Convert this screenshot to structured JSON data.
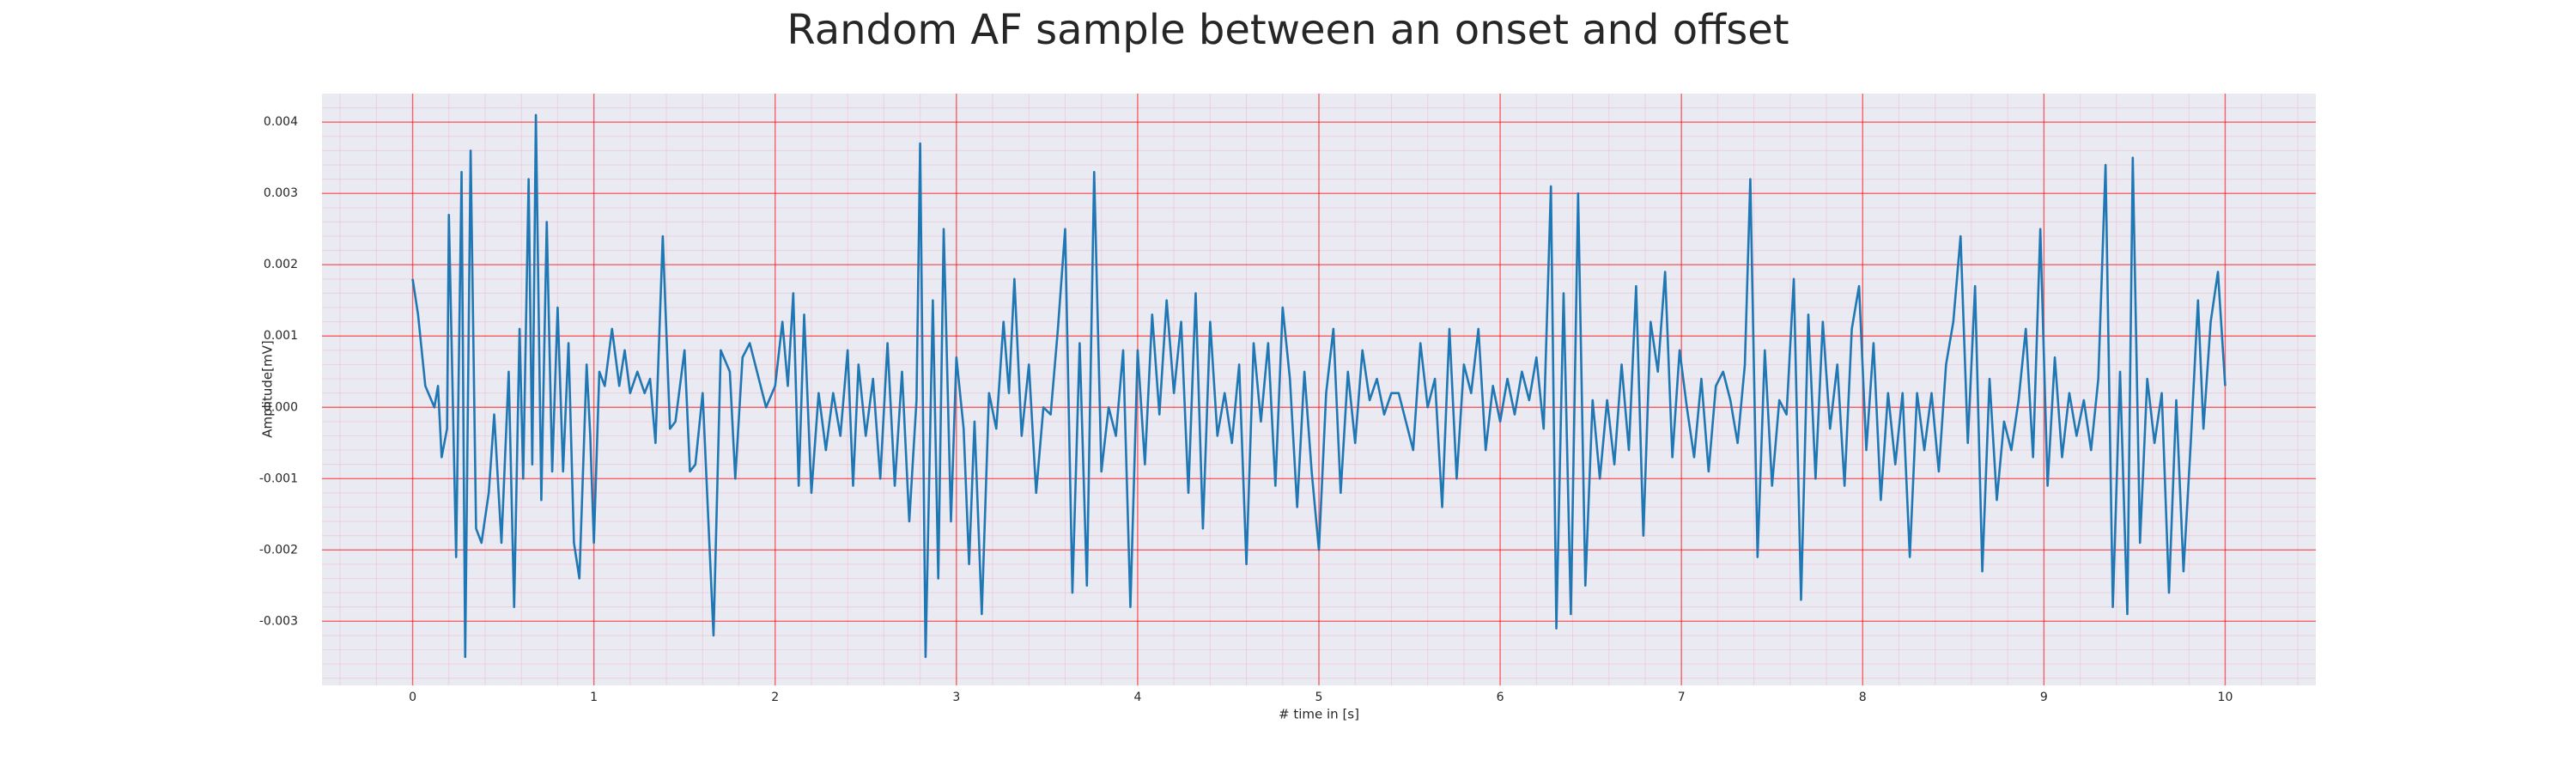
{
  "chart_data": {
    "type": "line",
    "title": "Random AF sample between an onset and offset",
    "xlabel": "# time in [s]",
    "ylabel": "Amplitude[mV]",
    "x": [
      0,
      0.03,
      0.07,
      0.12,
      0.14,
      0.16,
      0.19,
      0.2,
      0.24,
      0.27,
      0.29,
      0.32,
      0.35,
      0.38,
      0.42,
      0.45,
      0.49,
      0.53,
      0.56,
      0.59,
      0.61,
      0.64,
      0.66,
      0.68,
      0.71,
      0.74,
      0.77,
      0.8,
      0.83,
      0.86,
      0.89,
      0.92,
      0.96,
      0.98,
      1.0,
      1.03,
      1.06,
      1.1,
      1.14,
      1.17,
      1.2,
      1.24,
      1.28,
      1.31,
      1.34,
      1.38,
      1.42,
      1.45,
      1.5,
      1.53,
      1.56,
      1.6,
      1.66,
      1.7,
      1.75,
      1.78,
      1.82,
      1.86,
      1.9,
      1.95,
      2.0,
      2.04,
      2.07,
      2.1,
      2.13,
      2.16,
      2.2,
      2.24,
      2.28,
      2.32,
      2.36,
      2.4,
      2.43,
      2.46,
      2.5,
      2.54,
      2.58,
      2.62,
      2.66,
      2.7,
      2.74,
      2.78,
      2.8,
      2.83,
      2.87,
      2.9,
      2.93,
      2.97,
      3.0,
      3.04,
      3.07,
      3.1,
      3.14,
      3.18,
      3.22,
      3.26,
      3.29,
      3.32,
      3.36,
      3.4,
      3.44,
      3.48,
      3.52,
      3.56,
      3.6,
      3.64,
      3.68,
      3.72,
      3.76,
      3.8,
      3.84,
      3.88,
      3.92,
      3.96,
      4.0,
      4.04,
      4.08,
      4.12,
      4.16,
      4.2,
      4.24,
      4.28,
      4.32,
      4.36,
      4.4,
      4.44,
      4.48,
      4.52,
      4.56,
      4.6,
      4.64,
      4.68,
      4.72,
      4.76,
      4.8,
      4.84,
      4.88,
      4.92,
      4.96,
      5.0,
      5.04,
      5.08,
      5.12,
      5.16,
      5.2,
      5.24,
      5.28,
      5.32,
      5.36,
      5.4,
      5.44,
      5.48,
      5.52,
      5.56,
      5.6,
      5.64,
      5.68,
      5.72,
      5.76,
      5.8,
      5.84,
      5.88,
      5.92,
      5.96,
      6.0,
      6.04,
      6.08,
      6.12,
      6.16,
      6.2,
      6.24,
      6.28,
      6.31,
      6.35,
      6.39,
      6.43,
      6.47,
      6.51,
      6.55,
      6.59,
      6.63,
      6.67,
      6.71,
      6.75,
      6.79,
      6.83,
      6.87,
      6.91,
      6.95,
      6.99,
      7.03,
      7.07,
      7.11,
      7.15,
      7.19,
      7.23,
      7.27,
      7.31,
      7.35,
      7.38,
      7.42,
      7.46,
      7.5,
      7.54,
      7.58,
      7.62,
      7.66,
      7.7,
      7.74,
      7.78,
      7.82,
      7.86,
      7.9,
      7.94,
      7.98,
      8.02,
      8.06,
      8.1,
      8.14,
      8.18,
      8.22,
      8.26,
      8.3,
      8.34,
      8.38,
      8.42,
      8.46,
      8.5,
      8.54,
      8.58,
      8.62,
      8.66,
      8.7,
      8.74,
      8.78,
      8.82,
      8.86,
      8.9,
      8.94,
      8.98,
      9.02,
      9.06,
      9.1,
      9.14,
      9.18,
      9.22,
      9.26,
      9.3,
      9.34,
      9.38,
      9.42,
      9.46,
      9.49,
      9.53,
      9.57,
      9.61,
      9.65,
      9.69,
      9.73,
      9.77,
      9.81,
      9.85,
      9.88,
      9.92,
      9.96,
      10.0
    ],
    "series": [
      {
        "color": "#1f77b4",
        "values": [
          0.0018,
          0.0013,
          0.0003,
          0.0,
          0.0003,
          -0.0007,
          -0.0003,
          0.0027,
          -0.0021,
          0.0033,
          -0.0035,
          0.0036,
          -0.0017,
          -0.0019,
          -0.0012,
          -0.0001,
          -0.0019,
          0.0005,
          -0.0028,
          0.0011,
          -0.001,
          0.0032,
          -0.0008,
          0.0041,
          -0.0013,
          0.0026,
          -0.0009,
          0.0014,
          -0.0009,
          0.0009,
          -0.0019,
          -0.0024,
          0.0006,
          -0.0004,
          -0.0019,
          0.0005,
          0.0003,
          0.0011,
          0.0003,
          0.0008,
          0.0002,
          0.0005,
          0.0002,
          0.0004,
          -0.0005,
          0.0024,
          -0.0003,
          -0.0002,
          0.0008,
          -0.0009,
          -0.0008,
          0.0002,
          -0.0032,
          0.0008,
          0.0005,
          -0.001,
          0.0007,
          0.0009,
          0.0005,
          0.0,
          0.0003,
          0.0012,
          0.0003,
          0.0016,
          -0.0011,
          0.0013,
          -0.0012,
          0.0002,
          -0.0006,
          0.0002,
          -0.0004,
          0.0008,
          -0.0011,
          0.0006,
          -0.0004,
          0.0004,
          -0.001,
          0.0009,
          -0.0011,
          0.0005,
          -0.0016,
          0.0001,
          0.0037,
          -0.0035,
          0.0015,
          -0.0024,
          0.0025,
          -0.0016,
          0.0007,
          -0.0003,
          -0.0022,
          -0.0002,
          -0.0029,
          0.0002,
          -0.0003,
          0.0012,
          0.0002,
          0.0018,
          -0.0004,
          0.0006,
          -0.0012,
          0.0,
          -0.0001,
          0.0011,
          0.0025,
          -0.0026,
          0.0009,
          -0.0025,
          0.0033,
          -0.0009,
          0.0,
          -0.0004,
          0.0008,
          -0.0028,
          0.0008,
          -0.0008,
          0.0013,
          -0.0001,
          0.0015,
          0.0002,
          0.0012,
          -0.0012,
          0.0016,
          -0.0017,
          0.0012,
          -0.0004,
          0.0002,
          -0.0005,
          0.0006,
          -0.0022,
          0.0009,
          -0.0002,
          0.0009,
          -0.0011,
          0.0014,
          0.0004,
          -0.0014,
          0.0005,
          -0.0009,
          -0.002,
          0.0002,
          0.0011,
          -0.0012,
          0.0005,
          -0.0005,
          0.0008,
          0.0001,
          0.0004,
          -0.0001,
          0.0002,
          0.0002,
          -0.0002,
          -0.0006,
          0.0009,
          0.0,
          0.0004,
          -0.0014,
          0.0011,
          -0.001,
          0.0006,
          0.0002,
          0.0011,
          -0.0006,
          0.0003,
          -0.0002,
          0.0004,
          -0.0001,
          0.0005,
          0.0001,
          0.0007,
          -0.0003,
          0.0031,
          -0.0031,
          0.0016,
          -0.0029,
          0.003,
          -0.0025,
          0.0001,
          -0.001,
          0.0001,
          -0.0008,
          0.0006,
          -0.0006,
          0.0017,
          -0.0018,
          0.0012,
          0.0005,
          0.0019,
          -0.0007,
          0.0008,
          0.0,
          -0.0007,
          0.0004,
          -0.0009,
          0.0003,
          0.0005,
          0.0001,
          -0.0005,
          0.0006,
          0.0032,
          -0.0021,
          0.0008,
          -0.0011,
          0.0001,
          -0.0001,
          0.0018,
          -0.0027,
          0.0013,
          -0.001,
          0.0012,
          -0.0003,
          0.0006,
          -0.0011,
          0.0011,
          0.0017,
          -0.0006,
          0.0009,
          -0.0013,
          0.0002,
          -0.0008,
          0.0002,
          -0.0021,
          0.0002,
          -0.0006,
          0.0002,
          -0.0009,
          0.0006,
          0.0012,
          0.0024,
          -0.0005,
          0.0017,
          -0.0023,
          0.0004,
          -0.0013,
          -0.0002,
          -0.0006,
          0.0001,
          0.0011,
          -0.0007,
          0.0025,
          -0.0011,
          0.0007,
          -0.0007,
          0.0002,
          -0.0004,
          0.0001,
          -0.0006,
          0.0004,
          0.0034,
          -0.0028,
          0.0005,
          -0.0029,
          0.0035,
          -0.0019,
          0.0004,
          -0.0005,
          0.0002,
          -0.0026,
          0.0001,
          -0.0023,
          -0.0005,
          0.0015,
          -0.0003,
          0.0012,
          0.0019,
          0.0003
        ]
      }
    ],
    "xlim": [
      -0.5,
      10.5
    ],
    "xticks": [
      0,
      1,
      2,
      3,
      4,
      5,
      6,
      7,
      8,
      9,
      10
    ],
    "ylim": [
      -0.0039,
      0.0044
    ],
    "yticks": [
      -0.003,
      -0.002,
      -0.001,
      {
        "value": 0,
        "label": "0.000"
      },
      0.001,
      0.002,
      0.003,
      0.004
    ],
    "grid": true,
    "minor_grid": true
  }
}
